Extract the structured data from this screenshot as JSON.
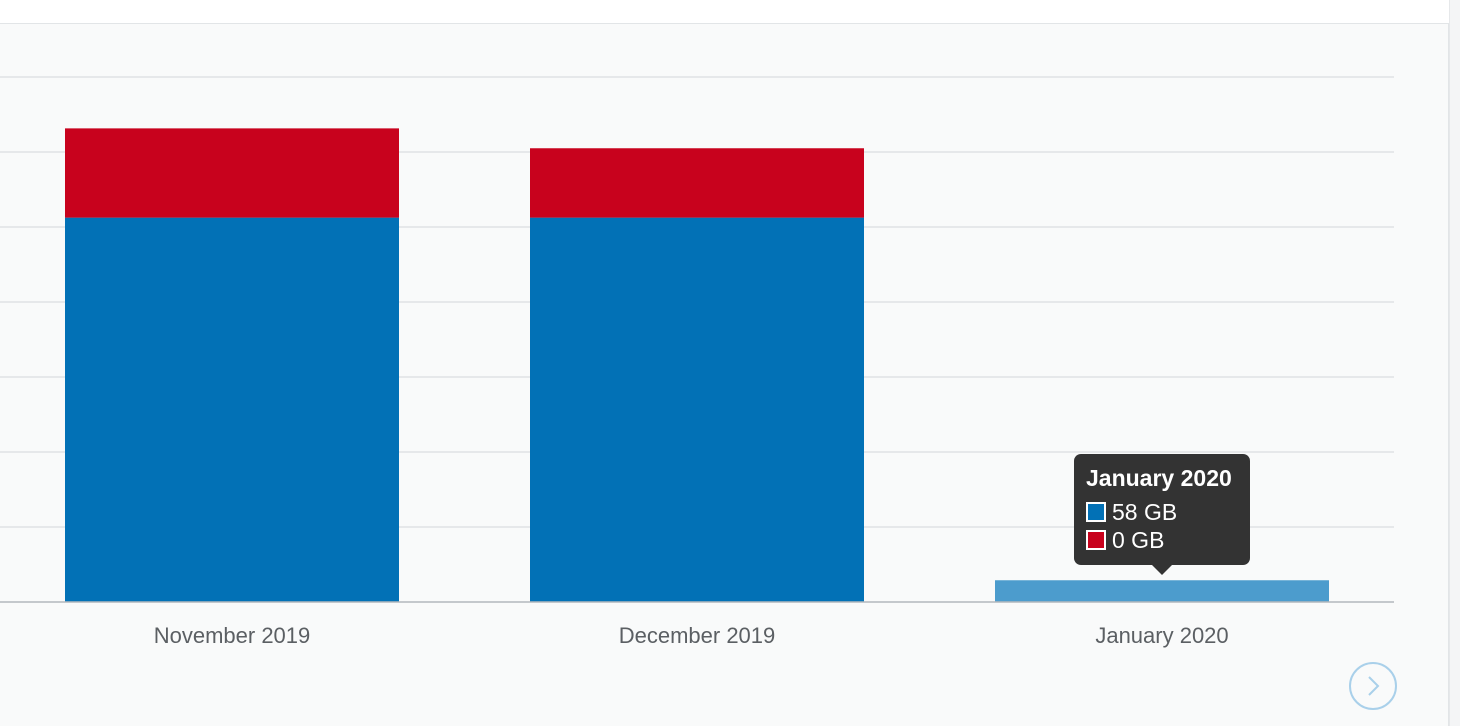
{
  "chart_data": {
    "type": "bar",
    "stacked": true,
    "categories": [
      "November 2019",
      "December 2019",
      "January 2020"
    ],
    "series": [
      {
        "values": [
          1025,
          1025,
          58
        ],
        "color": "#0271b6"
      },
      {
        "values": [
          238,
          185,
          0
        ],
        "color": "#c8021d"
      }
    ],
    "ylim": [
      0,
      1400
    ],
    "grid": true,
    "highlighted_color": "#4c9ccd"
  },
  "tooltip": {
    "title": "January 2020",
    "rows": [
      {
        "label": "58 GB",
        "color": "#0271b6"
      },
      {
        "label": "0 GB",
        "color": "#c8021d"
      }
    ]
  },
  "navigation": {
    "next_icon": "chevron-right-icon"
  }
}
